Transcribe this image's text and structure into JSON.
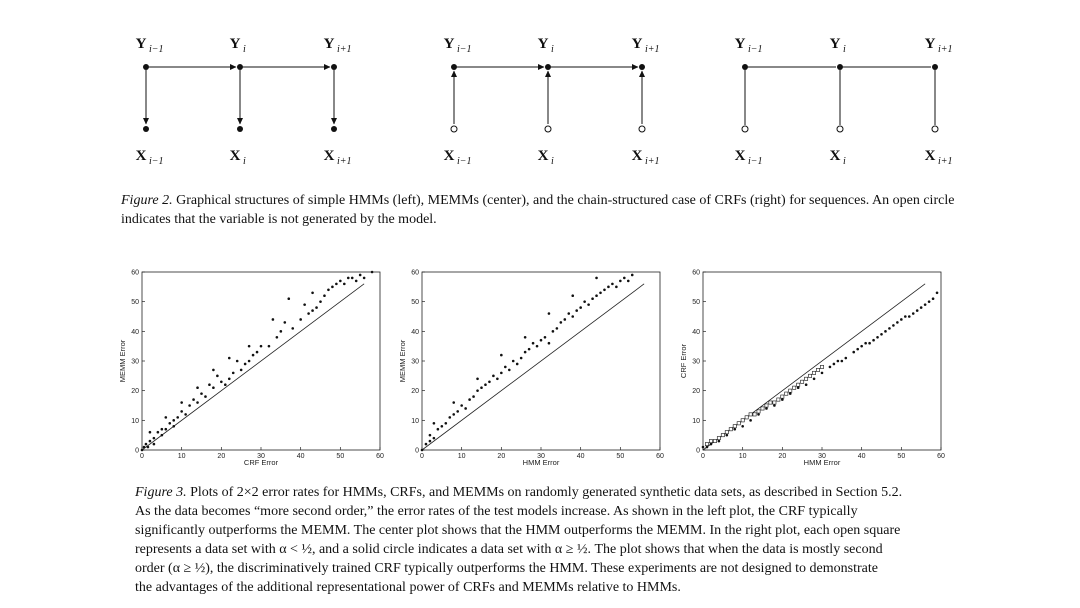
{
  "figure2": {
    "caption_label": "Figure 2.",
    "caption_text": "Graphical structures of simple HMMs (left), MEMMs (center), and the chain-structured case of CRFs (right) for sequences. An open circle indicates that the variable is not generated by the model.",
    "panels": [
      {
        "model": "HMM",
        "y_labels": [
          "Y",
          "Y",
          "Y"
        ],
        "y_subs": [
          "i−1",
          "i",
          "i+1"
        ],
        "x_labels": [
          "X",
          "X",
          "X"
        ],
        "x_subs": [
          "i−1",
          "i",
          "i+1"
        ],
        "x_nodes": "filled",
        "edges_y": "directed",
        "edges_xy": "y-to-x"
      },
      {
        "model": "MEMM",
        "y_labels": [
          "Y",
          "Y",
          "Y"
        ],
        "y_subs": [
          "i−1",
          "i",
          "i+1"
        ],
        "x_labels": [
          "X",
          "X",
          "X"
        ],
        "x_subs": [
          "i−1",
          "i",
          "i+1"
        ],
        "x_nodes": "open",
        "edges_y": "directed",
        "edges_xy": "x-to-y"
      },
      {
        "model": "CRF",
        "y_labels": [
          "Y",
          "Y",
          "Y"
        ],
        "y_subs": [
          "i−1",
          "i",
          "i+1"
        ],
        "x_labels": [
          "X",
          "X",
          "X"
        ],
        "x_subs": [
          "i−1",
          "i",
          "i+1"
        ],
        "x_nodes": "open",
        "edges_y": "undirected",
        "edges_xy": "undirected"
      }
    ]
  },
  "figure3": {
    "caption_label": "Figure 3.",
    "caption_lines": [
      "Plots of 2×2 error rates for HMMs, CRFs, and MEMMs on randomly generated synthetic data sets, as described in Section 5.2.",
      "As the data becomes “more second order,” the error rates of the test models increase.  As shown in the left plot, the CRF typically",
      "significantly outperforms the MEMM. The center plot shows that the HMM outperforms the MEMM. In the right plot, each open square",
      "represents a data set with α < ½, and a solid circle indicates a data set with α ≥ ½. The plot shows that when the data is mostly second",
      "order (α ≥ ½), the discriminatively trained CRF typically outperforms the HMM. These experiments are not designed to demonstrate",
      "the advantages of the additional representational power of CRFs and MEMMs relative to HMMs."
    ]
  },
  "chart_data": [
    {
      "type": "scatter",
      "xlabel": "CRF Error",
      "ylabel": "MEMM Error",
      "xlim": [
        0,
        60
      ],
      "ylim": [
        0,
        60
      ],
      "xticks": [
        0,
        10,
        20,
        30,
        40,
        50,
        60
      ],
      "yticks": [
        0,
        10,
        20,
        30,
        40,
        50,
        60
      ],
      "diagonal": true,
      "series": [
        {
          "marker": "dot",
          "points": [
            [
              0,
              0
            ],
            [
              0.5,
              1
            ],
            [
              1,
              2
            ],
            [
              1.5,
              1
            ],
            [
              2,
              3
            ],
            [
              3,
              2
            ],
            [
              3,
              4
            ],
            [
              4,
              6
            ],
            [
              5,
              5
            ],
            [
              5,
              7
            ],
            [
              6,
              7
            ],
            [
              7,
              9
            ],
            [
              8,
              8
            ],
            [
              8,
              10
            ],
            [
              9,
              11
            ],
            [
              10,
              13
            ],
            [
              11,
              12
            ],
            [
              12,
              15
            ],
            [
              13,
              17
            ],
            [
              14,
              16
            ],
            [
              15,
              19
            ],
            [
              16,
              18
            ],
            [
              17,
              22
            ],
            [
              18,
              21
            ],
            [
              19,
              25
            ],
            [
              20,
              23
            ],
            [
              21,
              22
            ],
            [
              22,
              24
            ],
            [
              23,
              26
            ],
            [
              24,
              30
            ],
            [
              25,
              27
            ],
            [
              26,
              29
            ],
            [
              27,
              30
            ],
            [
              28,
              32
            ],
            [
              29,
              33
            ],
            [
              30,
              35
            ],
            [
              32,
              35
            ],
            [
              34,
              38
            ],
            [
              35,
              40
            ],
            [
              36,
              43
            ],
            [
              38,
              41
            ],
            [
              40,
              44
            ],
            [
              41,
              49
            ],
            [
              42,
              46
            ],
            [
              43,
              47
            ],
            [
              44,
              48
            ],
            [
              45,
              50
            ],
            [
              46,
              52
            ],
            [
              47,
              54
            ],
            [
              48,
              55
            ],
            [
              49,
              56
            ],
            [
              50,
              57
            ],
            [
              51,
              56
            ],
            [
              52,
              58
            ],
            [
              53,
              58
            ],
            [
              54,
              57
            ],
            [
              55,
              59
            ],
            [
              56,
              58
            ],
            [
              58,
              60
            ],
            [
              2,
              6
            ],
            [
              6,
              11
            ],
            [
              10,
              16
            ],
            [
              14,
              21
            ],
            [
              18,
              27
            ],
            [
              22,
              31
            ],
            [
              27,
              35
            ],
            [
              33,
              44
            ],
            [
              37,
              51
            ],
            [
              43,
              53
            ]
          ]
        }
      ]
    },
    {
      "type": "scatter",
      "xlabel": "HMM Error",
      "ylabel": "MEMM Error",
      "xlim": [
        0,
        60
      ],
      "ylim": [
        0,
        60
      ],
      "xticks": [
        0,
        10,
        20,
        30,
        40,
        50,
        60
      ],
      "yticks": [
        0,
        10,
        20,
        30,
        40,
        50,
        60
      ],
      "diagonal": true,
      "series": [
        {
          "marker": "dot",
          "points": [
            [
              0,
              0
            ],
            [
              1,
              2
            ],
            [
              2,
              3
            ],
            [
              2,
              5
            ],
            [
              3,
              4
            ],
            [
              4,
              7
            ],
            [
              5,
              8
            ],
            [
              6,
              9
            ],
            [
              7,
              11
            ],
            [
              8,
              12
            ],
            [
              9,
              13
            ],
            [
              10,
              15
            ],
            [
              11,
              14
            ],
            [
              12,
              17
            ],
            [
              13,
              18
            ],
            [
              14,
              20
            ],
            [
              15,
              21
            ],
            [
              16,
              22
            ],
            [
              17,
              23
            ],
            [
              18,
              25
            ],
            [
              19,
              24
            ],
            [
              20,
              26
            ],
            [
              21,
              28
            ],
            [
              22,
              27
            ],
            [
              23,
              30
            ],
            [
              24,
              29
            ],
            [
              25,
              31
            ],
            [
              26,
              33
            ],
            [
              27,
              34
            ],
            [
              28,
              36
            ],
            [
              29,
              35
            ],
            [
              30,
              37
            ],
            [
              31,
              38
            ],
            [
              32,
              36
            ],
            [
              33,
              40
            ],
            [
              34,
              41
            ],
            [
              35,
              43
            ],
            [
              36,
              44
            ],
            [
              37,
              46
            ],
            [
              38,
              45
            ],
            [
              39,
              47
            ],
            [
              40,
              48
            ],
            [
              41,
              50
            ],
            [
              42,
              49
            ],
            [
              43,
              51
            ],
            [
              44,
              52
            ],
            [
              45,
              53
            ],
            [
              46,
              54
            ],
            [
              47,
              55
            ],
            [
              48,
              56
            ],
            [
              49,
              55
            ],
            [
              50,
              57
            ],
            [
              51,
              58
            ],
            [
              52,
              57
            ],
            [
              53,
              59
            ],
            [
              3,
              9
            ],
            [
              8,
              16
            ],
            [
              14,
              24
            ],
            [
              20,
              32
            ],
            [
              26,
              38
            ],
            [
              32,
              46
            ],
            [
              38,
              52
            ],
            [
              44,
              58
            ]
          ]
        }
      ]
    },
    {
      "type": "scatter",
      "xlabel": "HMM Error",
      "ylabel": "CRF Error",
      "xlim": [
        0,
        60
      ],
      "ylim": [
        0,
        60
      ],
      "xticks": [
        0,
        10,
        20,
        30,
        40,
        50,
        60
      ],
      "yticks": [
        0,
        10,
        20,
        30,
        40,
        50,
        60
      ],
      "diagonal": true,
      "series": [
        {
          "marker": "open-square",
          "points": [
            [
              1,
              2
            ],
            [
              2,
              3
            ],
            [
              3,
              3
            ],
            [
              4,
              4
            ],
            [
              5,
              5
            ],
            [
              6,
              6
            ],
            [
              7,
              7
            ],
            [
              8,
              8
            ],
            [
              9,
              9
            ],
            [
              10,
              10
            ],
            [
              11,
              11
            ],
            [
              12,
              12
            ],
            [
              13,
              12
            ],
            [
              14,
              13
            ],
            [
              15,
              14
            ],
            [
              16,
              15
            ],
            [
              17,
              16
            ],
            [
              18,
              16
            ],
            [
              19,
              17
            ],
            [
              20,
              18
            ],
            [
              21,
              19
            ],
            [
              22,
              20
            ],
            [
              23,
              21
            ],
            [
              24,
              22
            ],
            [
              25,
              23
            ],
            [
              26,
              24
            ],
            [
              27,
              25
            ],
            [
              28,
              26
            ],
            [
              29,
              27
            ],
            [
              30,
              28
            ]
          ]
        },
        {
          "marker": "dot",
          "points": [
            [
              0,
              1
            ],
            [
              1,
              1
            ],
            [
              2,
              2
            ],
            [
              4,
              3
            ],
            [
              6,
              5
            ],
            [
              8,
              7
            ],
            [
              10,
              8
            ],
            [
              12,
              10
            ],
            [
              14,
              12
            ],
            [
              16,
              14
            ],
            [
              18,
              15
            ],
            [
              20,
              17
            ],
            [
              22,
              19
            ],
            [
              24,
              21
            ],
            [
              26,
              22
            ],
            [
              28,
              24
            ],
            [
              30,
              26
            ],
            [
              32,
              28
            ],
            [
              33,
              29
            ],
            [
              34,
              30
            ],
            [
              35,
              30
            ],
            [
              36,
              31
            ],
            [
              38,
              33
            ],
            [
              39,
              34
            ],
            [
              40,
              35
            ],
            [
              41,
              36
            ],
            [
              42,
              36
            ],
            [
              43,
              37
            ],
            [
              44,
              38
            ],
            [
              45,
              39
            ],
            [
              46,
              40
            ],
            [
              47,
              41
            ],
            [
              48,
              42
            ],
            [
              49,
              43
            ],
            [
              50,
              44
            ],
            [
              51,
              45
            ],
            [
              52,
              45
            ],
            [
              53,
              46
            ],
            [
              54,
              47
            ],
            [
              55,
              48
            ],
            [
              56,
              49
            ],
            [
              57,
              50
            ],
            [
              58,
              51
            ],
            [
              59,
              53
            ]
          ]
        }
      ]
    }
  ]
}
